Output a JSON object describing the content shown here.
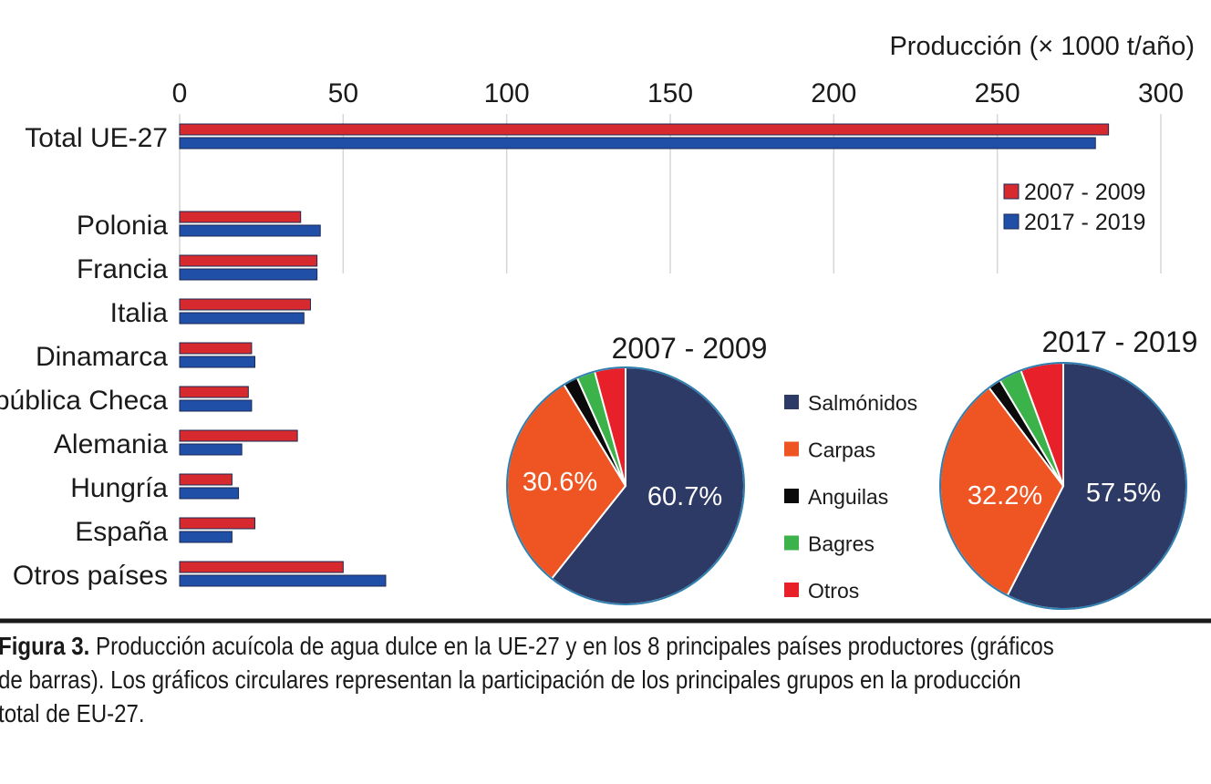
{
  "chart_data": [
    {
      "type": "bar",
      "orientation": "horizontal",
      "axis_title": "Producción (× 1000 t/año)",
      "xlim": [
        0,
        300
      ],
      "ticks": [
        0,
        50,
        100,
        150,
        200,
        250,
        300
      ],
      "categories": [
        "Total UE-27",
        "Polonia",
        "Francia",
        "Italia",
        "Dinamarca",
        "República Checa",
        "Alemania",
        "Hungría",
        "España",
        "Otros países"
      ],
      "series": [
        {
          "name": "2007 - 2009",
          "color": "#d62a2f",
          "values": [
            284,
            37,
            42,
            40,
            22,
            21,
            36,
            16,
            23,
            50
          ]
        },
        {
          "name": "2017 - 2019",
          "color": "#1f4fa6",
          "values": [
            280,
            43,
            42,
            38,
            23,
            22,
            19,
            18,
            16,
            63
          ]
        }
      ],
      "legend_position": "right"
    },
    {
      "type": "pie",
      "title": "2007 - 2009",
      "slices": [
        {
          "label": "Salmónidos",
          "value": 60.7,
          "text": "60.7%"
        },
        {
          "label": "Carpas",
          "value": 30.6,
          "text": "30.6%"
        },
        {
          "label": "Anguilas",
          "value": 2.0,
          "text": ""
        },
        {
          "label": "Bagres",
          "value": 2.5,
          "text": ""
        },
        {
          "label": "Otros",
          "value": 4.2,
          "text": ""
        }
      ]
    },
    {
      "type": "pie",
      "title": "2017 - 2019",
      "slices": [
        {
          "label": "Salmónidos",
          "value": 57.5,
          "text": "57.5%"
        },
        {
          "label": "Carpas",
          "value": 32.2,
          "text": "32.2%"
        },
        {
          "label": "Anguilas",
          "value": 1.7,
          "text": ""
        },
        {
          "label": "Bagres",
          "value": 3.0,
          "text": ""
        },
        {
          "label": "Otros",
          "value": 5.6,
          "text": ""
        }
      ]
    }
  ],
  "pie_legend": [
    {
      "label": "Salmónidos",
      "color": "#2e3a66"
    },
    {
      "label": "Carpas",
      "color": "#ee5522"
    },
    {
      "label": "Anguilas",
      "color": "#0a0a0a"
    },
    {
      "label": "Bagres",
      "color": "#3cb24a"
    },
    {
      "label": "Otros",
      "color": "#e8202a"
    }
  ],
  "caption": {
    "label": "Figura 3.",
    "line1": " Producción acuícola de agua dulce en la UE-27 y en los 8 principales países productores (gráficos",
    "line2": "de barras). Los gráficos circulares representan la participación de los principales grupos en la producción",
    "line3": "total de EU-27."
  }
}
